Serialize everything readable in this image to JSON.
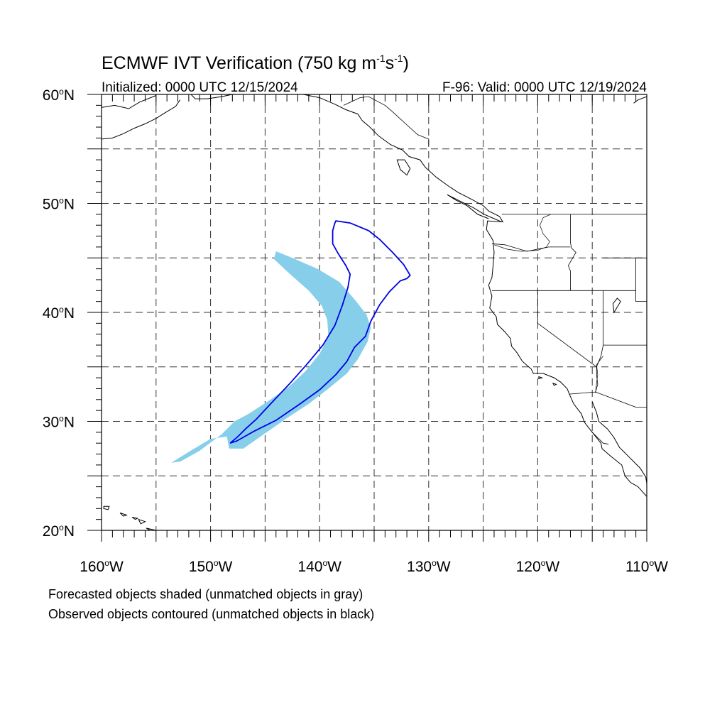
{
  "title": {
    "prefix": "ECMWF IVT Verification (750 kg m",
    "sup1": "-1",
    "mid": "s",
    "sup2": "-1",
    "suffix": ")"
  },
  "initialized": "Initialized: 0000 UTC 12/15/2024",
  "valid": "F-96: Valid: 0000 UTC 12/19/2024",
  "map": {
    "lon_range": [
      -160,
      -110
    ],
    "lat_range": [
      20,
      60
    ],
    "projection": "cylindrical-equidistant",
    "gridlines": "dashed every 5 degrees",
    "lat_labels": [
      {
        "lat": 60,
        "text": "60",
        "hemi": "N"
      },
      {
        "lat": 50,
        "text": "50",
        "hemi": "N"
      },
      {
        "lat": 40,
        "text": "40",
        "hemi": "N"
      },
      {
        "lat": 30,
        "text": "30",
        "hemi": "N"
      },
      {
        "lat": 20,
        "text": "20",
        "hemi": "N"
      }
    ],
    "lon_labels": [
      {
        "lon": -160,
        "text": "160",
        "hemi": "W"
      },
      {
        "lon": -150,
        "text": "150",
        "hemi": "W"
      },
      {
        "lon": -140,
        "text": "140",
        "hemi": "W"
      },
      {
        "lon": -130,
        "text": "130",
        "hemi": "W"
      },
      {
        "lon": -120,
        "text": "120",
        "hemi": "W"
      },
      {
        "lon": -110,
        "text": "110",
        "hemi": "W"
      }
    ],
    "forecast_object": {
      "color": "#87ceeb",
      "outline": [
        [
          -144.0,
          45.6
        ],
        [
          -142.5,
          45.0
        ],
        [
          -140.2,
          44.0
        ],
        [
          -138.2,
          42.8
        ],
        [
          -136.8,
          41.2
        ],
        [
          -135.7,
          39.8
        ],
        [
          -135.3,
          38.6
        ],
        [
          -135.6,
          37.3
        ],
        [
          -136.5,
          35.7
        ],
        [
          -137.5,
          34.4
        ],
        [
          -139.2,
          33.0
        ],
        [
          -141.0,
          31.6
        ],
        [
          -143.0,
          30.3
        ],
        [
          -145.0,
          28.9
        ],
        [
          -147.0,
          27.5
        ],
        [
          -148.3,
          27.5
        ],
        [
          -148.5,
          28.6
        ],
        [
          -150.0,
          28.4
        ],
        [
          -152.0,
          27.2
        ],
        [
          -153.6,
          26.2
        ],
        [
          -152.8,
          26.3
        ],
        [
          -151.0,
          27.3
        ],
        [
          -149.0,
          28.8
        ],
        [
          -147.8,
          30.0
        ],
        [
          -146.5,
          30.7
        ],
        [
          -144.8,
          31.8
        ],
        [
          -142.8,
          33.2
        ],
        [
          -141.3,
          34.6
        ],
        [
          -140.0,
          36.2
        ],
        [
          -139.2,
          37.8
        ],
        [
          -139.3,
          39.3
        ],
        [
          -139.8,
          40.6
        ],
        [
          -141.0,
          42.0
        ],
        [
          -142.7,
          43.5
        ],
        [
          -144.2,
          44.9
        ]
      ]
    },
    "observed_object": {
      "color": "#0000e6",
      "outline": [
        [
          -138.5,
          48.4
        ],
        [
          -137.2,
          48.2
        ],
        [
          -135.5,
          47.5
        ],
        [
          -134.5,
          46.7
        ],
        [
          -133.3,
          45.5
        ],
        [
          -132.3,
          44.4
        ],
        [
          -131.7,
          43.4
        ],
        [
          -132.0,
          43.1
        ],
        [
          -132.6,
          42.9
        ],
        [
          -133.6,
          41.9
        ],
        [
          -134.5,
          40.7
        ],
        [
          -135.3,
          39.2
        ],
        [
          -135.8,
          37.8
        ],
        [
          -136.8,
          36.8
        ],
        [
          -137.5,
          35.5
        ],
        [
          -138.5,
          34.3
        ],
        [
          -140.0,
          32.9
        ],
        [
          -141.8,
          31.6
        ],
        [
          -144.0,
          30.1
        ],
        [
          -146.0,
          29.1
        ],
        [
          -147.6,
          28.2
        ],
        [
          -148.2,
          28.0
        ],
        [
          -147.5,
          28.6
        ],
        [
          -146.8,
          29.3
        ],
        [
          -145.8,
          30.2
        ],
        [
          -144.5,
          31.6
        ],
        [
          -142.8,
          33.4
        ],
        [
          -141.2,
          35.2
        ],
        [
          -139.7,
          37.0
        ],
        [
          -138.6,
          38.8
        ],
        [
          -137.9,
          40.7
        ],
        [
          -137.4,
          42.3
        ],
        [
          -137.2,
          43.5
        ],
        [
          -137.6,
          44.3
        ],
        [
          -138.3,
          45.4
        ],
        [
          -138.8,
          46.3
        ],
        [
          -138.8,
          47.5
        ],
        [
          -138.6,
          48.2
        ]
      ]
    },
    "coastlines": [
      [
        [
          -160.0,
          58.8
        ],
        [
          -158.8,
          59.0
        ],
        [
          -157.5,
          58.7
        ],
        [
          -156.5,
          59.3
        ],
        [
          -155.0,
          59.9
        ]
      ],
      [
        [
          -160.0,
          55.9
        ],
        [
          -159.0,
          56.0
        ],
        [
          -158.0,
          56.4
        ],
        [
          -157.0,
          56.9
        ],
        [
          -156.0,
          57.3
        ],
        [
          -155.0,
          57.8
        ],
        [
          -154.2,
          58.3
        ],
        [
          -153.2,
          58.9
        ],
        [
          -152.8,
          59.5
        ]
      ],
      [
        [
          -151.8,
          60.0
        ],
        [
          -151.4,
          59.6
        ],
        [
          -150.3,
          59.6
        ],
        [
          -149.0,
          59.8
        ],
        [
          -148.0,
          60.0
        ]
      ],
      [
        [
          -141.5,
          60.0
        ],
        [
          -140.0,
          59.7
        ],
        [
          -138.6,
          59.1
        ],
        [
          -137.6,
          58.6
        ],
        [
          -136.5,
          58.2
        ],
        [
          -136.1,
          57.6
        ],
        [
          -135.4,
          57.0
        ],
        [
          -134.6,
          56.2
        ],
        [
          -133.5,
          55.4
        ],
        [
          -132.4,
          54.9
        ],
        [
          -131.8,
          54.3
        ],
        [
          -130.8,
          54.0
        ],
        [
          -130.3,
          53.3
        ],
        [
          -129.3,
          52.4
        ],
        [
          -128.2,
          51.6
        ],
        [
          -127.3,
          51.0
        ],
        [
          -126.1,
          50.4
        ],
        [
          -125.0,
          49.8
        ],
        [
          -124.5,
          49.3
        ],
        [
          -123.5,
          48.8
        ],
        [
          -123.2,
          48.3
        ],
        [
          -124.6,
          48.4
        ],
        [
          -124.7,
          47.6
        ],
        [
          -124.1,
          46.6
        ],
        [
          -124.0,
          45.5
        ],
        [
          -124.1,
          44.2
        ],
        [
          -124.2,
          43.2
        ],
        [
          -124.5,
          42.5
        ],
        [
          -124.2,
          41.5
        ],
        [
          -124.4,
          40.4
        ],
        [
          -123.8,
          39.6
        ],
        [
          -123.7,
          38.9
        ],
        [
          -123.0,
          38.2
        ],
        [
          -122.5,
          37.6
        ],
        [
          -122.4,
          36.9
        ],
        [
          -121.9,
          36.3
        ],
        [
          -121.4,
          35.5
        ],
        [
          -120.6,
          34.8
        ],
        [
          -120.4,
          34.4
        ],
        [
          -119.5,
          34.4
        ],
        [
          -118.5,
          34.0
        ],
        [
          -117.9,
          33.6
        ],
        [
          -117.3,
          33.0
        ],
        [
          -117.1,
          32.5
        ],
        [
          -116.7,
          31.6
        ],
        [
          -116.0,
          30.7
        ],
        [
          -115.7,
          29.9
        ],
        [
          -115.0,
          29.0
        ],
        [
          -114.2,
          28.0
        ],
        [
          -114.1,
          27.5
        ],
        [
          -113.3,
          26.8
        ],
        [
          -112.3,
          26.0
        ],
        [
          -112.0,
          25.0
        ],
        [
          -111.5,
          24.4
        ],
        [
          -110.8,
          24.0
        ],
        [
          -110.0,
          23.1
        ]
      ],
      [
        [
          -115.0,
          31.8
        ],
        [
          -114.6,
          30.8
        ],
        [
          -114.4,
          30.0
        ],
        [
          -113.6,
          29.3
        ],
        [
          -113.0,
          28.5
        ],
        [
          -112.5,
          27.6
        ],
        [
          -111.5,
          26.6
        ],
        [
          -110.6,
          25.7
        ],
        [
          -110.1,
          24.9
        ],
        [
          -110.0,
          24.3
        ]
      ],
      [
        [
          -123.3,
          48.3
        ],
        [
          -124.0,
          48.6
        ],
        [
          -124.9,
          49.0
        ],
        [
          -125.9,
          49.6
        ],
        [
          -127.3,
          50.3
        ],
        [
          -128.3,
          50.8
        ],
        [
          -127.5,
          50.3
        ],
        [
          -126.5,
          49.8
        ],
        [
          -125.5,
          49.0
        ],
        [
          -124.5,
          48.6
        ]
      ],
      [
        [
          -110.0,
          59.8
        ],
        [
          -110.8,
          59.5
        ],
        [
          -111.2,
          59.2
        ]
      ]
    ],
    "islands": [
      [
        [
          -159.8,
          22.2
        ],
        [
          -159.3,
          22.2
        ],
        [
          -159.4,
          21.9
        ],
        [
          -159.8,
          22.0
        ]
      ],
      [
        [
          -158.3,
          21.6
        ],
        [
          -157.7,
          21.4
        ],
        [
          -158.0,
          21.3
        ]
      ],
      [
        [
          -157.2,
          21.2
        ],
        [
          -156.7,
          21.1
        ],
        [
          -156.9,
          21.0
        ]
      ],
      [
        [
          -156.6,
          21.0
        ],
        [
          -156.0,
          20.8
        ],
        [
          -156.4,
          20.6
        ]
      ],
      [
        [
          -155.9,
          20.2
        ],
        [
          -155.0,
          20.0
        ],
        [
          -155.0,
          19.7
        ]
      ],
      [
        [
          -132.9,
          54.0
        ],
        [
          -132.2,
          54.0
        ],
        [
          -131.7,
          53.2
        ],
        [
          -132.0,
          52.6
        ],
        [
          -132.6,
          53.1
        ]
      ],
      [
        [
          -119.9,
          34.1
        ],
        [
          -119.6,
          34.0
        ],
        [
          -119.9,
          33.9
        ]
      ],
      [
        [
          -118.6,
          33.5
        ],
        [
          -118.3,
          33.4
        ],
        [
          -118.5,
          33.3
        ]
      ],
      [
        [
          -113.0,
          40.0
        ],
        [
          -112.4,
          41.0
        ],
        [
          -112.7,
          41.3
        ],
        [
          -113.1,
          40.8
        ]
      ]
    ],
    "borders": [
      [
        [
          -141.0,
          60.0
        ],
        [
          -141.0,
          59.8
        ]
      ],
      [
        [
          -137.8,
          59.0
        ],
        [
          -136.3,
          59.7
        ],
        [
          -135.5,
          59.8
        ],
        [
          -134.0,
          59.0
        ],
        [
          -133.3,
          58.4
        ],
        [
          -132.0,
          57.2
        ],
        [
          -131.0,
          56.3
        ],
        [
          -130.0,
          55.9
        ],
        [
          -130.0,
          55.3
        ]
      ],
      [
        [
          -123.3,
          49.0
        ],
        [
          -110.0,
          49.0
        ]
      ],
      [
        [
          -117.0,
          49.0
        ],
        [
          -117.0,
          46.4
        ],
        [
          -116.9,
          45.9
        ],
        [
          -116.5,
          45.5
        ],
        [
          -116.9,
          44.8
        ],
        [
          -117.2,
          44.3
        ],
        [
          -117.0,
          43.8
        ],
        [
          -117.0,
          42.0
        ]
      ],
      [
        [
          -124.2,
          46.3
        ],
        [
          -123.0,
          46.2
        ],
        [
          -121.0,
          45.6
        ],
        [
          -119.0,
          46.0
        ],
        [
          -117.0,
          46.0
        ]
      ],
      [
        [
          -124.2,
          42.0
        ],
        [
          -111.0,
          42.0
        ]
      ],
      [
        [
          -120.0,
          42.0
        ],
        [
          -120.0,
          39.0
        ],
        [
          -114.6,
          35.0
        ],
        [
          -114.6,
          34.3
        ],
        [
          -114.5,
          33.4
        ],
        [
          -114.7,
          32.7
        ]
      ],
      [
        [
          -114.0,
          42.0
        ],
        [
          -114.0,
          37.0
        ],
        [
          -114.2,
          36.0
        ],
        [
          -114.6,
          35.0
        ]
      ],
      [
        [
          -114.0,
          37.0
        ],
        [
          -110.0,
          37.0
        ]
      ],
      [
        [
          -111.0,
          45.0
        ],
        [
          -111.0,
          41.0
        ],
        [
          -110.0,
          41.0
        ]
      ],
      [
        [
          -114.0,
          45.0
        ],
        [
          -110.0,
          45.0
        ]
      ],
      [
        [
          -117.1,
          32.5
        ],
        [
          -114.7,
          32.7
        ],
        [
          -111.0,
          31.3
        ],
        [
          -110.0,
          31.3
        ]
      ],
      [
        [
          -115.0,
          29.0
        ],
        [
          -114.0,
          28.0
        ],
        [
          -113.5,
          27.9
        ]
      ]
    ],
    "rivers": [
      [
        [
          -124.0,
          46.2
        ],
        [
          -122.8,
          45.8
        ],
        [
          -121.5,
          45.6
        ],
        [
          -120.0,
          45.7
        ],
        [
          -119.2,
          46.0
        ],
        [
          -118.9,
          46.5
        ],
        [
          -119.5,
          47.2
        ],
        [
          -119.8,
          48.0
        ],
        [
          -119.5,
          48.7
        ],
        [
          -118.8,
          49.0
        ]
      ],
      [
        [
          -114.7,
          32.6
        ],
        [
          -114.6,
          33.5
        ],
        [
          -114.5,
          34.3
        ],
        [
          -114.6,
          35.2
        ],
        [
          -114.0,
          36.0
        ]
      ]
    ]
  },
  "legend": {
    "line1": "Forecasted objects shaded (unmatched objects in gray)",
    "line2": "Observed objects contoured (unmatched objects in black)"
  }
}
